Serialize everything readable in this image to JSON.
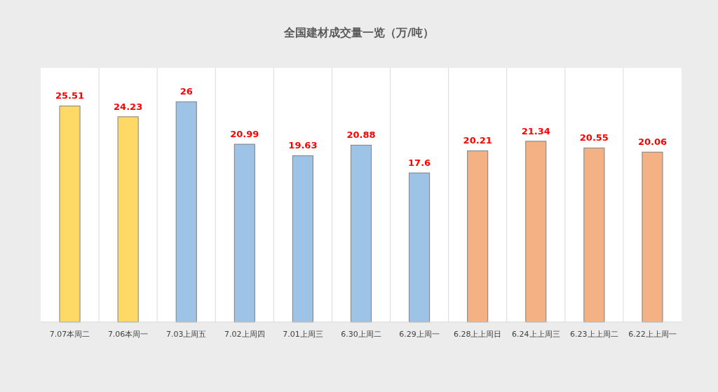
{
  "chart_data": {
    "type": "bar",
    "title": "全国建材成交量一览（万/吨）",
    "categories": [
      "7.07本周二",
      "7.06本周一",
      "7.03上周五",
      "7.02上周四",
      "7.01上周三",
      "6.30上周二",
      "6.29上周一",
      "6.28上上周日",
      "6.24上上周三",
      "6.23上上周二",
      "6.22上上周一"
    ],
    "values": [
      25.51,
      24.23,
      26,
      20.99,
      19.63,
      20.88,
      17.6,
      20.21,
      21.34,
      20.55,
      20.06
    ],
    "colors": [
      "#ffd966",
      "#ffd966",
      "#9dc3e6",
      "#9dc3e6",
      "#9dc3e6",
      "#9dc3e6",
      "#9dc3e6",
      "#f4b183",
      "#f4b183",
      "#f4b183",
      "#f4b183"
    ],
    "ylim": [
      0,
      30
    ],
    "data_labels": true,
    "grid": "x"
  }
}
